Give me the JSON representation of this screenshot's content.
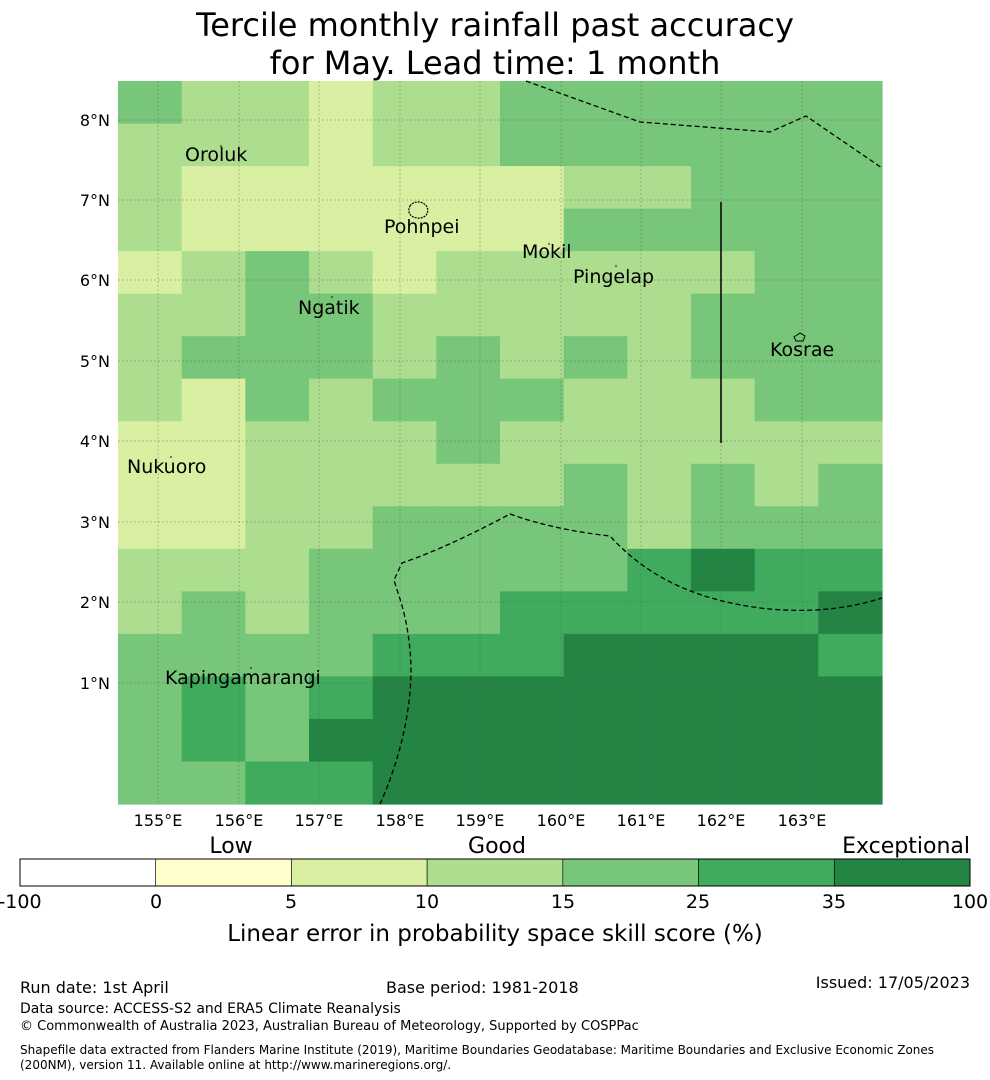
{
  "title_line1": "Tercile monthly rainfall past accuracy",
  "title_line2": "for May. Lead time: 1 month",
  "map": {
    "lon_ticks": [
      "155°E",
      "156°E",
      "157°E",
      "158°E",
      "159°E",
      "160°E",
      "161°E",
      "162°E",
      "163°E"
    ],
    "lat_ticks": [
      "8°N",
      "7°N",
      "6°N",
      "5°N",
      "4°N",
      "3°N",
      "2°N",
      "1°N"
    ],
    "places": [
      {
        "name": "Oroluk"
      },
      {
        "name": "Pohnpei"
      },
      {
        "name": "Mokil"
      },
      {
        "name": "Pingelap"
      },
      {
        "name": "Ngatik"
      },
      {
        "name": "Kosrae"
      },
      {
        "name": "Nukuoro"
      },
      {
        "name": "Kapingamarangi"
      }
    ],
    "grid_lon_start": 154.5,
    "grid_lat_top": 8.5,
    "grid_cell_deg_lon": 0.8333,
    "grid_cell_deg_lat": 0.5556,
    "skill_class_grid": [
      [
        4,
        3,
        3,
        2,
        3,
        3,
        4,
        4,
        4,
        4,
        4,
        4
      ],
      [
        3,
        3,
        3,
        2,
        3,
        3,
        4,
        4,
        4,
        4,
        4,
        4
      ],
      [
        3,
        2,
        2,
        2,
        2,
        2,
        2,
        3,
        3,
        4,
        4,
        4
      ],
      [
        3,
        2,
        2,
        2,
        2,
        2,
        2,
        4,
        4,
        4,
        4,
        4
      ],
      [
        2,
        3,
        4,
        3,
        2,
        3,
        3,
        3,
        3,
        3,
        4,
        4
      ],
      [
        3,
        3,
        4,
        4,
        3,
        3,
        3,
        3,
        3,
        4,
        4,
        4
      ],
      [
        3,
        4,
        4,
        4,
        3,
        4,
        3,
        4,
        3,
        4,
        4,
        4
      ],
      [
        3,
        2,
        4,
        3,
        4,
        4,
        4,
        3,
        3,
        3,
        4,
        4
      ],
      [
        2,
        2,
        3,
        3,
        3,
        4,
        3,
        3,
        3,
        3,
        3,
        3
      ],
      [
        2,
        2,
        3,
        3,
        3,
        3,
        3,
        4,
        3,
        4,
        3,
        4
      ],
      [
        2,
        2,
        3,
        3,
        4,
        4,
        4,
        4,
        3,
        4,
        4,
        4
      ],
      [
        3,
        3,
        3,
        4,
        4,
        4,
        4,
        4,
        5,
        6,
        5,
        5
      ],
      [
        3,
        4,
        3,
        4,
        4,
        4,
        5,
        5,
        5,
        5,
        5,
        6
      ],
      [
        4,
        4,
        4,
        4,
        5,
        5,
        5,
        6,
        6,
        6,
        6,
        5
      ],
      [
        4,
        5,
        4,
        5,
        6,
        6,
        6,
        6,
        6,
        6,
        6,
        6
      ],
      [
        4,
        5,
        4,
        6,
        6,
        6,
        6,
        6,
        6,
        6,
        6,
        6
      ],
      [
        4,
        4,
        5,
        5,
        6,
        6,
        6,
        6,
        6,
        6,
        6,
        6
      ]
    ]
  },
  "colorbar": {
    "ticks": [
      "-100",
      "0",
      "5",
      "10",
      "15",
      "25",
      "35",
      "100"
    ],
    "colors": [
      "#ffffff",
      "#ffffcc",
      "#d9f0a3",
      "#addd8e",
      "#78c679",
      "#41ab5d",
      "#238443"
    ],
    "categories": {
      "low": "Low",
      "good": "Good",
      "exceptional": "Exceptional"
    },
    "label": "Linear error in probability space skill score (%)"
  },
  "footer": {
    "run_date": "Run date: 1st April",
    "base_period": "Base period: 1981-2018",
    "issued": "Issued: 17/05/2023",
    "data_source": "Data source: ACCESS-S2 and ERA5 Climate Reanalysis",
    "copyright": "© Commonwealth of Australia 2023, Australian Bureau of Meteorology, Supported by COSPPac",
    "shapefile": "Shapefile data extracted from Flanders Marine Institute (2019), Maritime Boundaries Geodatabase: Maritime Boundaries and Exclusive Economic Zones (200NM), version 11. Available online at http://www.marineregions.org/."
  }
}
